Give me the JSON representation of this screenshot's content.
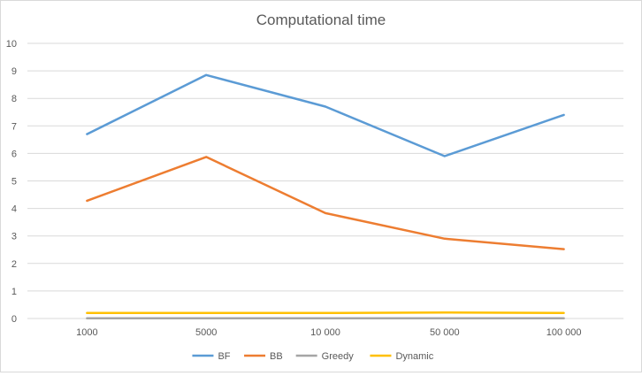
{
  "chart_data": {
    "type": "line",
    "title": "Computational time",
    "xlabel": "",
    "ylabel": "",
    "categories": [
      "1000",
      "5000",
      "10 000",
      "50 000",
      "100 000"
    ],
    "ylim": [
      0,
      10
    ],
    "yticks": [
      "0",
      "1",
      "2",
      "3",
      "4",
      "5",
      "6",
      "7",
      "8",
      "9",
      "10"
    ],
    "grid": true,
    "legend_position": "bottom",
    "series": [
      {
        "name": "BF",
        "color": "#5b9bd5",
        "values": [
          6.7,
          8.85,
          7.7,
          5.9,
          7.4
        ]
      },
      {
        "name": "BB",
        "color": "#ed7d31",
        "values": [
          4.28,
          5.87,
          3.83,
          2.9,
          2.52
        ]
      },
      {
        "name": "Greedy",
        "color": "#a5a5a5",
        "values": [
          0.01,
          0.01,
          0.01,
          0.01,
          0.01
        ]
      },
      {
        "name": "Dynamic",
        "color": "#ffc000",
        "values": [
          0.2,
          0.2,
          0.2,
          0.22,
          0.2
        ]
      }
    ]
  }
}
